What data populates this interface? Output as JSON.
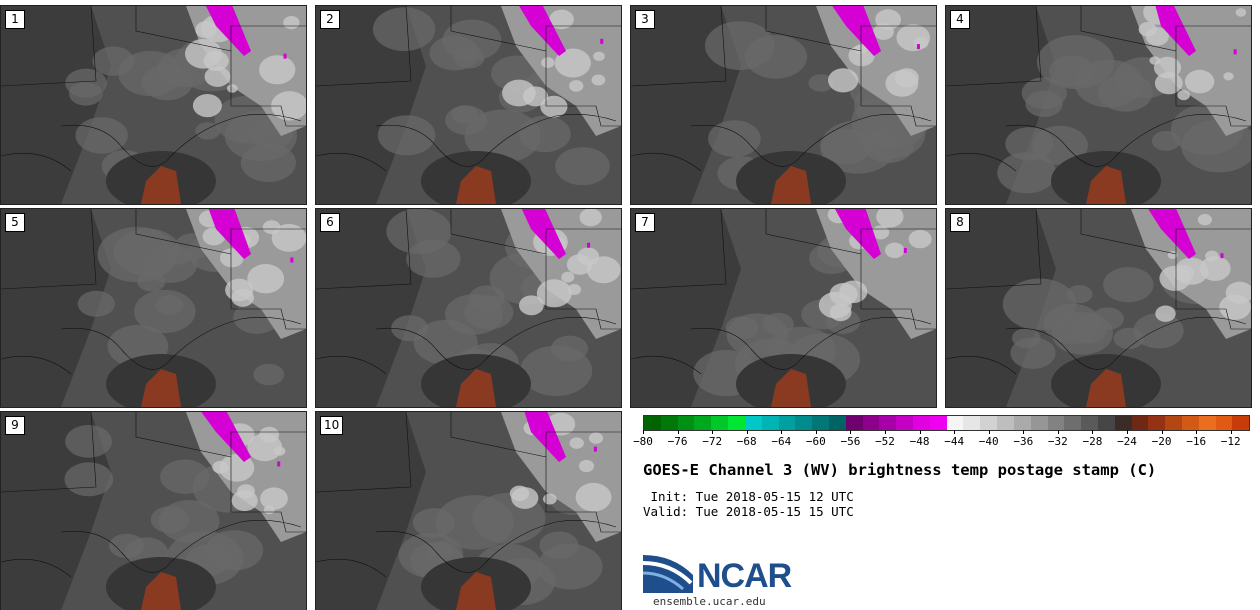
{
  "panels": [
    {
      "label": "1"
    },
    {
      "label": "2"
    },
    {
      "label": "3"
    },
    {
      "label": "4"
    },
    {
      "label": "5"
    },
    {
      "label": "6"
    },
    {
      "label": "7"
    },
    {
      "label": "8"
    },
    {
      "label": "9"
    },
    {
      "label": "10"
    }
  ],
  "colorbar": {
    "colors": [
      "#006400",
      "#00780a",
      "#009014",
      "#00a81e",
      "#00c828",
      "#00e632",
      "#00c8c8",
      "#00b4b4",
      "#00a0a0",
      "#008c8c",
      "#007878",
      "#006464",
      "#700070",
      "#8c008c",
      "#a800a8",
      "#c400c4",
      "#e000e0",
      "#f000f0",
      "#f5f5f5",
      "#e6e6e6",
      "#d2d2d2",
      "#bebebe",
      "#aaaaaa",
      "#969696",
      "#828282",
      "#6e6e6e",
      "#5a5a5a",
      "#464646",
      "#3c2c28",
      "#6e2814",
      "#963214",
      "#b44614",
      "#d25a14",
      "#eb6e1e",
      "#e05a14",
      "#c83c0a"
    ],
    "ticks": [
      "−80",
      "−76",
      "−72",
      "−68",
      "−64",
      "−60",
      "−56",
      "−52",
      "−48",
      "−44",
      "−40",
      "−36",
      "−32",
      "−28",
      "−24",
      "−20",
      "−16",
      "−12"
    ],
    "min": -80,
    "max": -10
  },
  "title": "GOES-E Channel 3 (WV) brightness temp postage stamp (C)",
  "init_line": " Init: Tue 2018-05-15 12 UTC",
  "valid_line": "Valid: Tue 2018-05-15 15 UTC",
  "logo": {
    "text": "NCAR",
    "site": "ensemble.ucar.edu"
  }
}
